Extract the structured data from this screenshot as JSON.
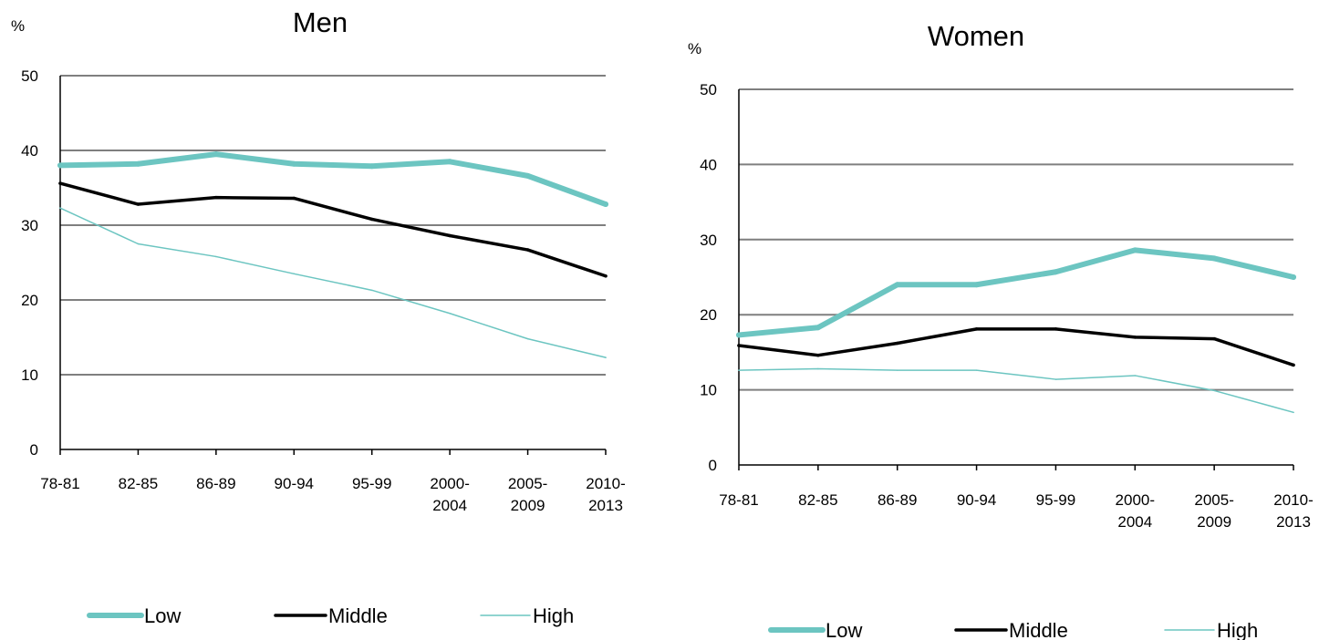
{
  "chart_data": [
    {
      "type": "line",
      "title": "Men",
      "ylabel": "%",
      "xlabel": "",
      "ylim": [
        0,
        50
      ],
      "yticks": [
        "0",
        "10",
        "20",
        "30",
        "40",
        "50"
      ],
      "categories": [
        [
          "78-81"
        ],
        [
          "82-85"
        ],
        [
          "86-89"
        ],
        [
          "90-94"
        ],
        [
          "95-99"
        ],
        [
          "2000-",
          "2004"
        ],
        [
          "2005-",
          "2009"
        ],
        [
          "2010-",
          "2013"
        ]
      ],
      "grid": true,
      "legend_position": "bottom",
      "series": [
        {
          "name": "Low",
          "color": "#6cc5c1",
          "style": "thick",
          "values": [
            38,
            38.2,
            39.5,
            38.2,
            37.9,
            38.5,
            36.6,
            32.8
          ]
        },
        {
          "name": "Middle",
          "color": "#000000",
          "style": "medium",
          "values": [
            35.6,
            32.8,
            33.7,
            33.6,
            30.8,
            28.6,
            26.7,
            23.2
          ]
        },
        {
          "name": "High",
          "color": "#6cc5c1",
          "style": "thin",
          "values": [
            32.3,
            27.5,
            25.8,
            23.5,
            21.3,
            18.2,
            14.8,
            12.3
          ]
        }
      ]
    },
    {
      "type": "line",
      "title": "Women",
      "ylabel": "%",
      "xlabel": "",
      "ylim": [
        0,
        50
      ],
      "yticks": [
        "0",
        "10",
        "20",
        "30",
        "40",
        "50"
      ],
      "categories": [
        [
          "78-81"
        ],
        [
          "82-85"
        ],
        [
          "86-89"
        ],
        [
          "90-94"
        ],
        [
          "95-99"
        ],
        [
          "2000-",
          "2004"
        ],
        [
          "2005-",
          "2009"
        ],
        [
          "2010-",
          "2013"
        ]
      ],
      "grid": true,
      "legend_position": "bottom",
      "series": [
        {
          "name": "Low",
          "color": "#6cc5c1",
          "style": "thick",
          "values": [
            17.3,
            18.3,
            24,
            24,
            25.7,
            28.6,
            27.5,
            25
          ]
        },
        {
          "name": "Middle",
          "color": "#000000",
          "style": "medium",
          "values": [
            15.9,
            14.6,
            16.2,
            18.1,
            18.1,
            17,
            16.8,
            13.3
          ]
        },
        {
          "name": "High",
          "color": "#6cc5c1",
          "style": "thin",
          "values": [
            12.6,
            12.8,
            12.6,
            12.6,
            11.4,
            11.9,
            9.9,
            7
          ]
        }
      ]
    }
  ]
}
